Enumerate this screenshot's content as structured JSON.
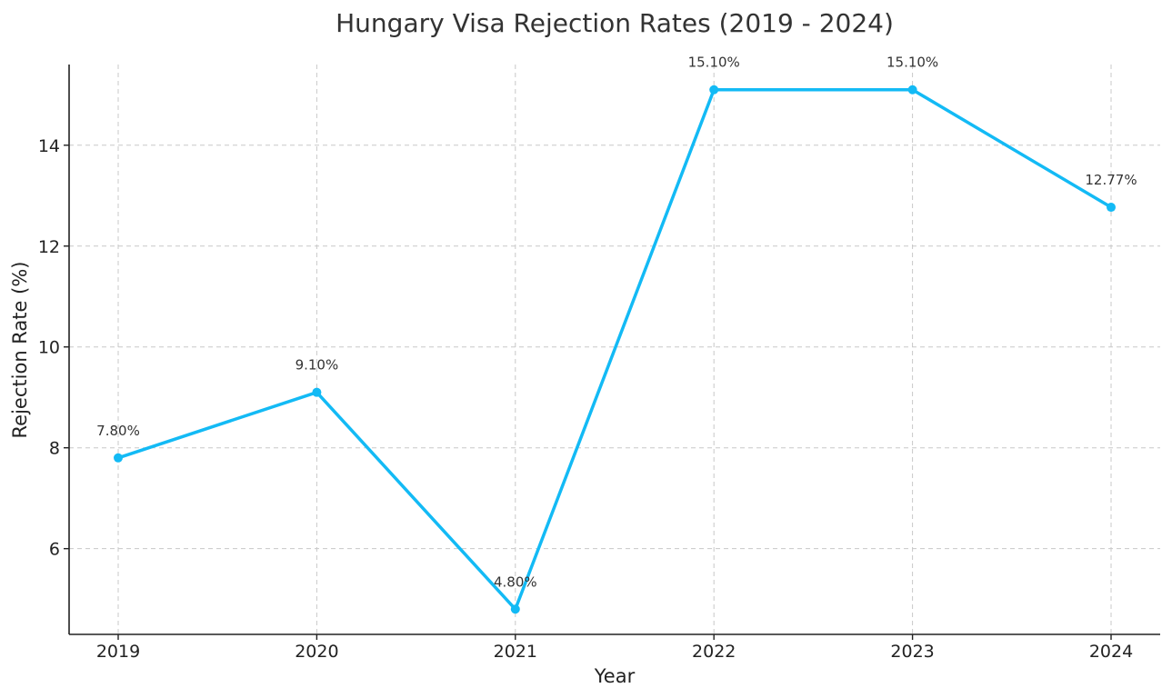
{
  "chart_data": {
    "type": "line",
    "title": "Hungary Visa Rejection Rates (2019 - 2024)",
    "xlabel": "Year",
    "ylabel": "Rejection Rate (%)",
    "categories": [
      "2019",
      "2020",
      "2021",
      "2022",
      "2023",
      "2024"
    ],
    "series": [
      {
        "values": [
          7.8,
          9.1,
          4.8,
          15.1,
          15.1,
          12.77
        ],
        "labels": [
          "7.80%",
          "9.10%",
          "4.80%",
          "15.10%",
          "15.10%",
          "12.77%"
        ],
        "color": "#13baf5"
      }
    ],
    "ylim": [
      4.3,
      15.6
    ],
    "yticks": [
      6,
      8,
      10,
      12,
      14
    ],
    "grid": true,
    "legend": "none"
  }
}
